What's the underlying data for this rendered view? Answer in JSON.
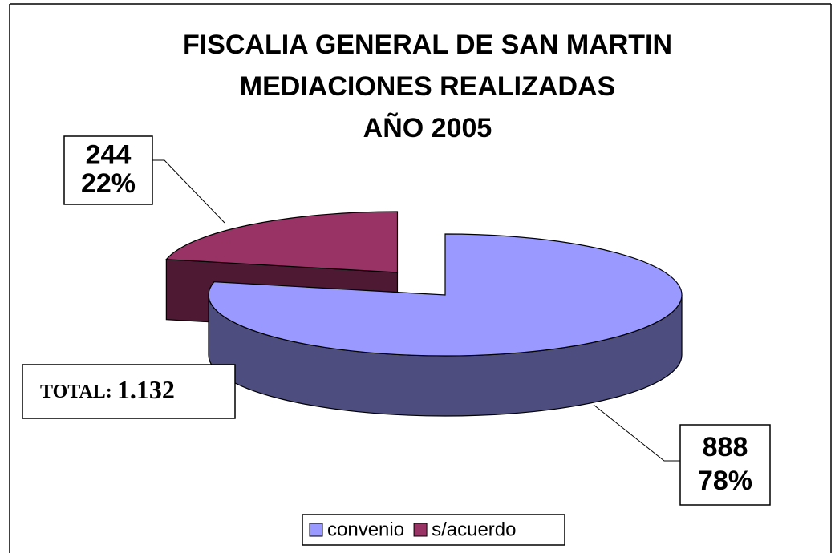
{
  "chart_data": {
    "type": "pie3d",
    "title": [
      "FISCALIA GENERAL DE SAN MARTIN",
      "MEDIACIONES REALIZADAS",
      "AÑO 2005"
    ],
    "categories": [
      "convenio",
      "s/acuerdo"
    ],
    "values": [
      888,
      244
    ],
    "percentages": [
      78,
      22
    ],
    "percent_labels": [
      "78%",
      "22%"
    ],
    "colors": [
      "#9999ff",
      "#993366"
    ],
    "side_colors": [
      "#4d4d80",
      "#4d1933"
    ],
    "exploded": [
      false,
      true
    ],
    "total": {
      "label": "TOTAL:",
      "value": 1132,
      "value_label": "1.132"
    },
    "legend": "bottom"
  }
}
